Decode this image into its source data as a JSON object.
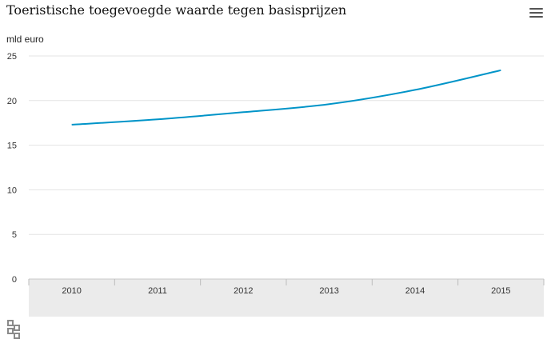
{
  "chart_data": {
    "type": "line",
    "title": "Toeristische toegevoegde waarde tegen basisprijzen",
    "ylabel": "mld euro",
    "xlabel": "",
    "categories": [
      "2010",
      "2011",
      "2012",
      "2013",
      "2014",
      "2015"
    ],
    "series": [
      {
        "values": [
          17.3,
          17.9,
          18.7,
          19.6,
          21.2,
          23.4
        ]
      }
    ],
    "ylim": [
      0,
      25
    ],
    "yticks": [
      "0",
      "5",
      "10",
      "15",
      "20",
      "25"
    ],
    "grid": true,
    "line_color": "#0094c8"
  },
  "menu_icon": "hamburger-menu-icon",
  "logo_icon": "cbs-logo-icon"
}
